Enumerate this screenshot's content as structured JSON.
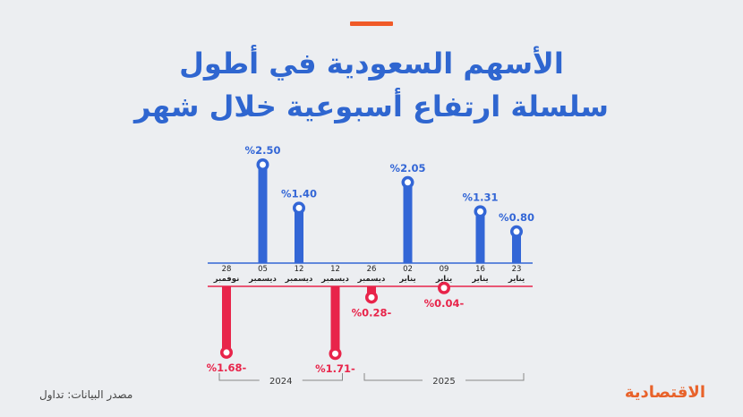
{
  "header": {
    "title_line1": "الأسهم السعودية في أطول",
    "title_line2": "سلسلة ارتفاع أسبوعية خلال شهر",
    "accent_color": "#f05a28"
  },
  "footer": {
    "source": "مصدر البيانات: تداول",
    "logo_text": "الاقتصادية"
  },
  "colors": {
    "positive": "#3366d6",
    "negative": "#e8244a",
    "title": "#2f66d0"
  },
  "chart_data": {
    "type": "bar",
    "categories": [
      {
        "day": "28",
        "month": "نوفمبر"
      },
      {
        "day": "05",
        "month": "ديسمبر"
      },
      {
        "day": "12",
        "month": "ديسمبر"
      },
      {
        "day": "12",
        "month": "ديسمبر"
      },
      {
        "day": "26",
        "month": "ديسمبر"
      },
      {
        "day": "02",
        "month": "يناير"
      },
      {
        "day": "09",
        "month": "يناير"
      },
      {
        "day": "16",
        "month": "يناير"
      },
      {
        "day": "23",
        "month": "يناير"
      }
    ],
    "values": [
      -1.68,
      2.5,
      1.4,
      -1.71,
      -0.28,
      2.05,
      -0.04,
      1.31,
      0.8
    ],
    "labels": [
      "%1.68-",
      "%2.50",
      "%1.40",
      "%1.71-",
      "%0.28-",
      "%2.05",
      "%0.04-",
      "%1.31",
      "%0.80"
    ],
    "year_groups": [
      {
        "label": "2024",
        "start_index": 0,
        "end_index": 3
      },
      {
        "label": "2025",
        "start_index": 4,
        "end_index": 8
      }
    ]
  }
}
